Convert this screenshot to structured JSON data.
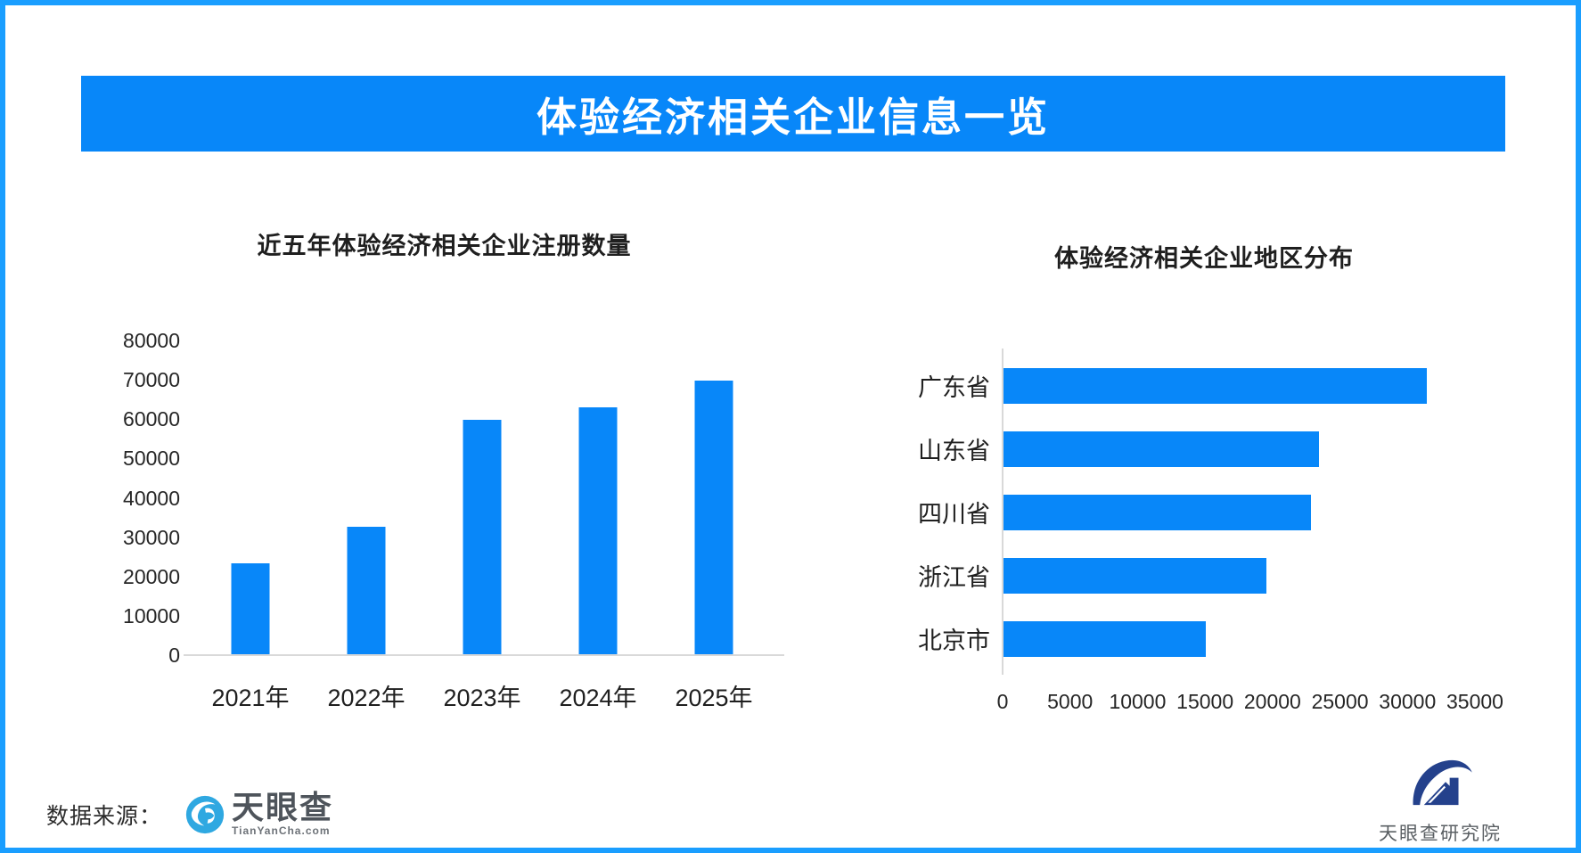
{
  "page": {
    "border_color": "#1a9eff",
    "accent_color": "#0887f9",
    "axis_line_color": "#d9d9d9"
  },
  "banner": {
    "title": "体验经济相关企业信息一览"
  },
  "chart_data": [
    {
      "type": "bar",
      "orientation": "vertical",
      "title": "近五年体验经济相关企业注册数量",
      "categories": [
        "2021年",
        "2022年",
        "2023年",
        "2024年",
        "2025年"
      ],
      "values": [
        23400,
        32600,
        59800,
        63000,
        69700
      ],
      "ylabel": "",
      "xlabel": "",
      "ylim": [
        0,
        80000
      ],
      "yticks": [
        0,
        10000,
        20000,
        30000,
        40000,
        50000,
        60000,
        70000,
        80000
      ],
      "grid": false,
      "bar_color": "#0887f9"
    },
    {
      "type": "bar",
      "orientation": "horizontal",
      "title": "体验经济相关企业地区分布",
      "categories": [
        "广东省",
        "山东省",
        "四川省",
        "浙江省",
        "北京市"
      ],
      "values": [
        31400,
        23400,
        22800,
        19500,
        15000
      ],
      "ylabel": "",
      "xlabel": "",
      "xlim": [
        0,
        35000
      ],
      "xticks": [
        0,
        5000,
        10000,
        15000,
        20000,
        25000,
        30000,
        35000
      ],
      "grid": false,
      "bar_color": "#0887f9"
    }
  ],
  "footer": {
    "source_label": "数据来源：",
    "tianyancha_logo_text": "天眼查",
    "tianyancha_logo_sub": "TianYanCha.com",
    "institute_logo_text": "天眼查研究院"
  }
}
